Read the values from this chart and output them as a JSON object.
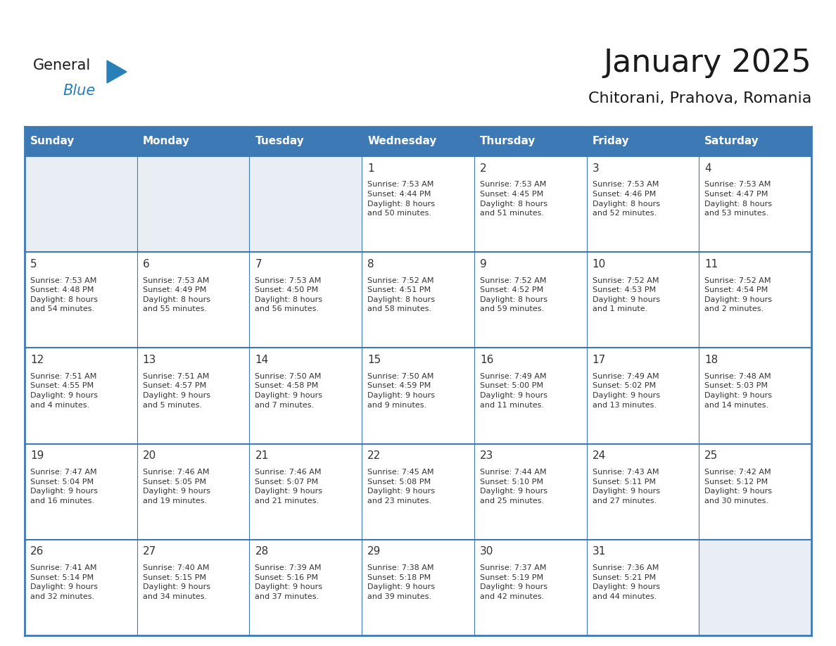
{
  "title": "January 2025",
  "subtitle": "Chitorani, Prahova, Romania",
  "header_bg_color": "#3d7ab5",
  "header_text_color": "#ffffff",
  "border_color": "#3d7ab5",
  "text_color": "#333333",
  "day_headers": [
    "Sunday",
    "Monday",
    "Tuesday",
    "Wednesday",
    "Thursday",
    "Friday",
    "Saturday"
  ],
  "weeks": [
    [
      {
        "day": "",
        "info": ""
      },
      {
        "day": "",
        "info": ""
      },
      {
        "day": "",
        "info": ""
      },
      {
        "day": "1",
        "info": "Sunrise: 7:53 AM\nSunset: 4:44 PM\nDaylight: 8 hours\nand 50 minutes."
      },
      {
        "day": "2",
        "info": "Sunrise: 7:53 AM\nSunset: 4:45 PM\nDaylight: 8 hours\nand 51 minutes."
      },
      {
        "day": "3",
        "info": "Sunrise: 7:53 AM\nSunset: 4:46 PM\nDaylight: 8 hours\nand 52 minutes."
      },
      {
        "day": "4",
        "info": "Sunrise: 7:53 AM\nSunset: 4:47 PM\nDaylight: 8 hours\nand 53 minutes."
      }
    ],
    [
      {
        "day": "5",
        "info": "Sunrise: 7:53 AM\nSunset: 4:48 PM\nDaylight: 8 hours\nand 54 minutes."
      },
      {
        "day": "6",
        "info": "Sunrise: 7:53 AM\nSunset: 4:49 PM\nDaylight: 8 hours\nand 55 minutes."
      },
      {
        "day": "7",
        "info": "Sunrise: 7:53 AM\nSunset: 4:50 PM\nDaylight: 8 hours\nand 56 minutes."
      },
      {
        "day": "8",
        "info": "Sunrise: 7:52 AM\nSunset: 4:51 PM\nDaylight: 8 hours\nand 58 minutes."
      },
      {
        "day": "9",
        "info": "Sunrise: 7:52 AM\nSunset: 4:52 PM\nDaylight: 8 hours\nand 59 minutes."
      },
      {
        "day": "10",
        "info": "Sunrise: 7:52 AM\nSunset: 4:53 PM\nDaylight: 9 hours\nand 1 minute."
      },
      {
        "day": "11",
        "info": "Sunrise: 7:52 AM\nSunset: 4:54 PM\nDaylight: 9 hours\nand 2 minutes."
      }
    ],
    [
      {
        "day": "12",
        "info": "Sunrise: 7:51 AM\nSunset: 4:55 PM\nDaylight: 9 hours\nand 4 minutes."
      },
      {
        "day": "13",
        "info": "Sunrise: 7:51 AM\nSunset: 4:57 PM\nDaylight: 9 hours\nand 5 minutes."
      },
      {
        "day": "14",
        "info": "Sunrise: 7:50 AM\nSunset: 4:58 PM\nDaylight: 9 hours\nand 7 minutes."
      },
      {
        "day": "15",
        "info": "Sunrise: 7:50 AM\nSunset: 4:59 PM\nDaylight: 9 hours\nand 9 minutes."
      },
      {
        "day": "16",
        "info": "Sunrise: 7:49 AM\nSunset: 5:00 PM\nDaylight: 9 hours\nand 11 minutes."
      },
      {
        "day": "17",
        "info": "Sunrise: 7:49 AM\nSunset: 5:02 PM\nDaylight: 9 hours\nand 13 minutes."
      },
      {
        "day": "18",
        "info": "Sunrise: 7:48 AM\nSunset: 5:03 PM\nDaylight: 9 hours\nand 14 minutes."
      }
    ],
    [
      {
        "day": "19",
        "info": "Sunrise: 7:47 AM\nSunset: 5:04 PM\nDaylight: 9 hours\nand 16 minutes."
      },
      {
        "day": "20",
        "info": "Sunrise: 7:46 AM\nSunset: 5:05 PM\nDaylight: 9 hours\nand 19 minutes."
      },
      {
        "day": "21",
        "info": "Sunrise: 7:46 AM\nSunset: 5:07 PM\nDaylight: 9 hours\nand 21 minutes."
      },
      {
        "day": "22",
        "info": "Sunrise: 7:45 AM\nSunset: 5:08 PM\nDaylight: 9 hours\nand 23 minutes."
      },
      {
        "day": "23",
        "info": "Sunrise: 7:44 AM\nSunset: 5:10 PM\nDaylight: 9 hours\nand 25 minutes."
      },
      {
        "day": "24",
        "info": "Sunrise: 7:43 AM\nSunset: 5:11 PM\nDaylight: 9 hours\nand 27 minutes."
      },
      {
        "day": "25",
        "info": "Sunrise: 7:42 AM\nSunset: 5:12 PM\nDaylight: 9 hours\nand 30 minutes."
      }
    ],
    [
      {
        "day": "26",
        "info": "Sunrise: 7:41 AM\nSunset: 5:14 PM\nDaylight: 9 hours\nand 32 minutes."
      },
      {
        "day": "27",
        "info": "Sunrise: 7:40 AM\nSunset: 5:15 PM\nDaylight: 9 hours\nand 34 minutes."
      },
      {
        "day": "28",
        "info": "Sunrise: 7:39 AM\nSunset: 5:16 PM\nDaylight: 9 hours\nand 37 minutes."
      },
      {
        "day": "29",
        "info": "Sunrise: 7:38 AM\nSunset: 5:18 PM\nDaylight: 9 hours\nand 39 minutes."
      },
      {
        "day": "30",
        "info": "Sunrise: 7:37 AM\nSunset: 5:19 PM\nDaylight: 9 hours\nand 42 minutes."
      },
      {
        "day": "31",
        "info": "Sunrise: 7:36 AM\nSunset: 5:21 PM\nDaylight: 9 hours\nand 44 minutes."
      },
      {
        "day": "",
        "info": ""
      }
    ]
  ],
  "logo_color_general": "#1a1a1a",
  "logo_color_blue": "#2980b9",
  "logo_triangle_color": "#2980b9",
  "cell_white": "#ffffff",
  "cell_gray": "#e8eef4",
  "title_fontsize": 32,
  "subtitle_fontsize": 16,
  "header_fontsize": 11,
  "day_num_fontsize": 11,
  "info_fontsize": 8
}
